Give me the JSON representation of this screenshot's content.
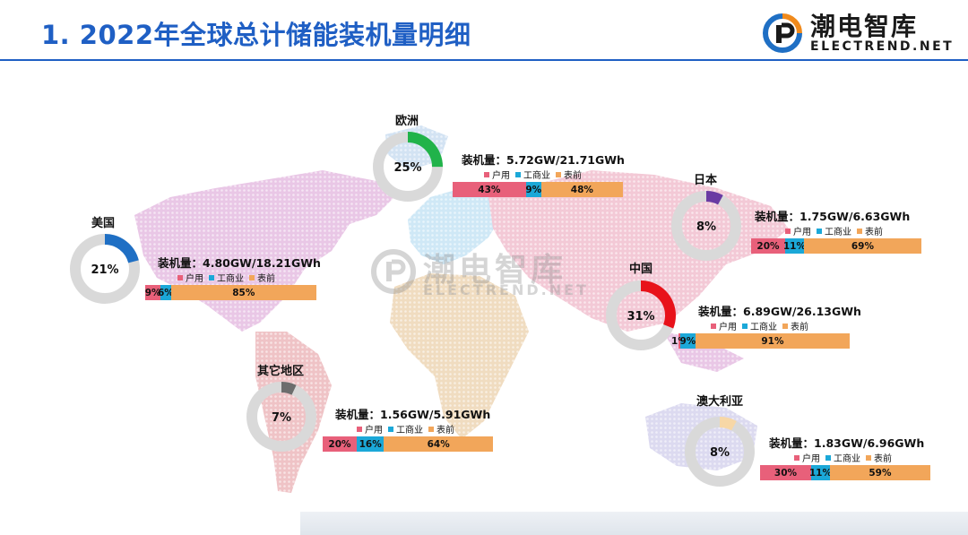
{
  "title": "1. 2022年全球总计储能装机量明细",
  "logo": {
    "cn": "潮电智库",
    "en": "ELECTREND.NET"
  },
  "watermark": {
    "cn": "潮电智库",
    "en": "ELECTREND.NET"
  },
  "colors": {
    "household": "#e8607a",
    "commercial": "#1ba8d8",
    "front_of_meter": "#f2a65a",
    "title": "#1f5fc4",
    "ring": "#d9d9d9"
  },
  "chart_data": {
    "type": "pie",
    "segment_names": [
      "户用",
      "工商业",
      "表前"
    ],
    "regions": [
      {
        "name": "欧洲",
        "share": 25,
        "share_label": "25%",
        "color": "#21b34a",
        "capacity": "装机量：5.72GW/21.71GWh",
        "split": [
          43,
          9,
          48
        ],
        "split_labels": [
          "43%",
          "9%",
          "48%"
        ]
      },
      {
        "name": "美国",
        "share": 21,
        "share_label": "21%",
        "color": "#1f6fc4",
        "capacity": "装机量：4.80GW/18.21GWh",
        "split": [
          9,
          6,
          85
        ],
        "split_labels": [
          "9%",
          "6%",
          "85%"
        ]
      },
      {
        "name": "日本",
        "share": 8,
        "share_label": "8%",
        "color": "#6a3ba3",
        "capacity": "装机量：1.75GW/6.63GWh",
        "split": [
          20,
          11,
          69
        ],
        "split_labels": [
          "20%",
          "11%",
          "69%"
        ]
      },
      {
        "name": "中国",
        "share": 31,
        "share_label": "31%",
        "color": "#e8121a",
        "capacity": "装机量：6.89GW/26.13GWh",
        "split": [
          1,
          9,
          91
        ],
        "split_labels": [
          "1%",
          "9%",
          "91%"
        ]
      },
      {
        "name": "其它地区",
        "share": 7,
        "share_label": "7%",
        "color": "#6d6d6d",
        "capacity": "装机量：1.56GW/5.91GWh",
        "split": [
          20,
          16,
          64
        ],
        "split_labels": [
          "20%",
          "16%",
          "64%"
        ]
      },
      {
        "name": "澳大利亚",
        "share": 8,
        "share_label": "8%",
        "color": "#f7d7a6",
        "capacity": "装机量：1.83GW/6.96GWh",
        "split": [
          30,
          11,
          59
        ],
        "split_labels": [
          "30%",
          "11%",
          "59%"
        ]
      }
    ]
  }
}
